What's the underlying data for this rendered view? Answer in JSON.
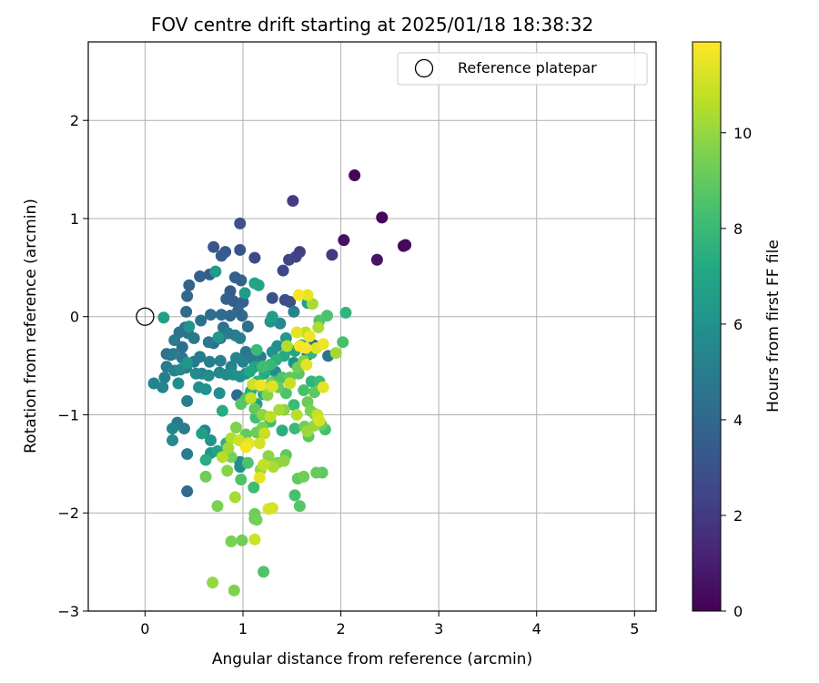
{
  "chart_data": {
    "type": "scatter",
    "title": "FOV centre drift starting at 2025/01/18 18:38:32",
    "xlabel": "Angular distance from reference (arcmin)",
    "ylabel": "Rotation from reference (arcmin)",
    "xlim": [
      -0.58,
      5.22
    ],
    "ylim": [
      -3,
      2.8
    ],
    "xticks": [
      0,
      1,
      2,
      3,
      4,
      5
    ],
    "yticks": [
      -3,
      -2,
      -1,
      0,
      1,
      2
    ],
    "xtick_labels": [
      "0",
      "1",
      "2",
      "3",
      "4",
      "5"
    ],
    "ytick_labels": [
      "−3",
      "−2",
      "−1",
      "0",
      "1",
      "2"
    ],
    "grid": true,
    "legend": {
      "placement": "upper-right",
      "label": "Reference platepar"
    },
    "reference_point": {
      "x": 0,
      "y": 0
    },
    "colorbar": {
      "label": "Hours from first FF file",
      "range": [
        0,
        11.9
      ],
      "ticks": [
        0,
        2,
        4,
        6,
        8,
        10
      ],
      "tick_labels": [
        "0",
        "2",
        "4",
        "6",
        "8",
        "10"
      ],
      "colormap": "viridis"
    },
    "points_xyh": [
      [
        2.14,
        1.44,
        0.1
      ],
      [
        2.42,
        1.01,
        0.2
      ],
      [
        2.66,
        0.73,
        0.3
      ],
      [
        2.64,
        0.72,
        0.3
      ],
      [
        2.03,
        0.78,
        0.5
      ],
      [
        2.37,
        0.58,
        0.6
      ],
      [
        1.51,
        1.18,
        2.1
      ],
      [
        1.58,
        0.66,
        2.2
      ],
      [
        1.54,
        0.61,
        2.3
      ],
      [
        1.47,
        0.58,
        2.4
      ],
      [
        1.91,
        0.63,
        2.0
      ],
      [
        1.41,
        0.47,
        2.5
      ],
      [
        1.12,
        0.6,
        2.6
      ],
      [
        1.43,
        0.17,
        2.7
      ],
      [
        1.48,
        0.15,
        2.8
      ],
      [
        1.3,
        0.19,
        2.9
      ],
      [
        0.97,
        0.95,
        3.0
      ],
      [
        0.97,
        0.68,
        3.1
      ],
      [
        0.7,
        0.71,
        3.2
      ],
      [
        0.82,
        0.66,
        3.3
      ],
      [
        0.78,
        0.62,
        3.4
      ],
      [
        0.66,
        0.43,
        3.5
      ],
      [
        0.92,
        0.4,
        3.6
      ],
      [
        0.98,
        0.37,
        3.7
      ],
      [
        0.56,
        0.41,
        3.6
      ],
      [
        0.45,
        0.32,
        3.8
      ],
      [
        0.43,
        0.21,
        3.9
      ],
      [
        0.87,
        0.26,
        3.4
      ],
      [
        0.9,
        0.16,
        3.5
      ],
      [
        0.83,
        0.18,
        3.7
      ],
      [
        1.0,
        0.15,
        3.8
      ],
      [
        0.95,
        0.06,
        3.9
      ],
      [
        0.99,
        0.01,
        4.0
      ],
      [
        0.87,
        0.01,
        4.1
      ],
      [
        0.78,
        0.02,
        4.2
      ],
      [
        0.67,
        0.02,
        4.3
      ],
      [
        0.42,
        0.05,
        4.1
      ],
      [
        0.57,
        -0.04,
        4.4
      ],
      [
        0.41,
        -0.11,
        4.2
      ],
      [
        0.35,
        -0.16,
        4.5
      ],
      [
        0.44,
        -0.17,
        4.6
      ],
      [
        0.5,
        -0.22,
        4.7
      ],
      [
        0.65,
        -0.26,
        4.8
      ],
      [
        0.7,
        -0.27,
        4.3
      ],
      [
        0.77,
        -0.22,
        4.4
      ],
      [
        0.8,
        -0.11,
        4.5
      ],
      [
        0.85,
        -0.17,
        4.9
      ],
      [
        0.92,
        -0.19,
        5.0
      ],
      [
        0.97,
        -0.22,
        5.1
      ],
      [
        1.05,
        -0.1,
        4.4
      ],
      [
        1.03,
        -0.36,
        4.6
      ],
      [
        1.1,
        -0.43,
        4.8
      ],
      [
        1.18,
        -0.41,
        5.0
      ],
      [
        1.0,
        -0.46,
        5.2
      ],
      [
        0.93,
        -0.42,
        5.3
      ],
      [
        0.88,
        -0.51,
        5.4
      ],
      [
        0.77,
        -0.45,
        5.2
      ],
      [
        0.66,
        -0.46,
        5.1
      ],
      [
        0.56,
        -0.41,
        4.9
      ],
      [
        0.5,
        -0.46,
        4.7
      ],
      [
        0.38,
        -0.42,
        4.6
      ],
      [
        0.26,
        -0.39,
        4.5
      ],
      [
        0.22,
        -0.38,
        4.4
      ],
      [
        0.29,
        -0.38,
        4.9
      ],
      [
        0.3,
        -0.24,
        4.8
      ],
      [
        0.38,
        -0.31,
        4.3
      ],
      [
        0.22,
        -0.51,
        5.0
      ],
      [
        0.3,
        -0.55,
        5.3
      ],
      [
        0.36,
        -0.54,
        5.5
      ],
      [
        0.42,
        -0.52,
        5.2
      ],
      [
        0.52,
        -0.58,
        5.6
      ],
      [
        0.58,
        -0.58,
        5.4
      ],
      [
        0.65,
        -0.6,
        5.7
      ],
      [
        0.76,
        -0.57,
        5.5
      ],
      [
        0.83,
        -0.59,
        5.6
      ],
      [
        0.9,
        -0.59,
        5.8
      ],
      [
        0.97,
        -0.61,
        5.9
      ],
      [
        1.03,
        -0.58,
        6.0
      ],
      [
        0.2,
        -0.62,
        5.1
      ],
      [
        0.18,
        -0.72,
        5.3
      ],
      [
        0.09,
        -0.68,
        5.4
      ],
      [
        0.34,
        -0.68,
        5.8
      ],
      [
        0.55,
        -0.72,
        5.9
      ],
      [
        0.62,
        -0.74,
        6.0
      ],
      [
        0.76,
        -0.78,
        5.7
      ],
      [
        0.94,
        -0.8,
        4.2
      ],
      [
        0.43,
        -0.86,
        5.0
      ],
      [
        0.33,
        -1.08,
        4.8
      ],
      [
        0.4,
        -1.14,
        5.1
      ],
      [
        0.28,
        -1.14,
        5.4
      ],
      [
        0.28,
        -1.26,
        5.6
      ],
      [
        0.61,
        -1.16,
        5.3
      ],
      [
        0.67,
        -1.26,
        6.2
      ],
      [
        0.67,
        -1.39,
        6.3
      ],
      [
        0.43,
        -1.4,
        4.9
      ],
      [
        0.97,
        -1.48,
        5.7
      ],
      [
        0.97,
        -1.53,
        5.8
      ],
      [
        0.43,
        -1.78,
        4.2
      ],
      [
        1.28,
        -0.05,
        6.1
      ],
      [
        1.3,
        0.0,
        6.6
      ],
      [
        1.12,
        0.34,
        6.9
      ],
      [
        1.16,
        0.32,
        7.0
      ],
      [
        1.02,
        0.24,
        6.4
      ],
      [
        0.72,
        0.46,
        6.5
      ],
      [
        0.19,
        -0.01,
        6.7
      ],
      [
        1.66,
        0.14,
        6.8
      ],
      [
        2.05,
        0.04,
        7.7
      ],
      [
        2.02,
        -0.26,
        8.4
      ],
      [
        1.78,
        -0.04,
        8.7
      ],
      [
        1.86,
        0.01,
        8.5
      ],
      [
        1.44,
        -0.22,
        6.3
      ],
      [
        1.46,
        -0.32,
        6.5
      ],
      [
        1.53,
        -0.35,
        7.0
      ],
      [
        1.6,
        -0.29,
        7.4
      ],
      [
        1.7,
        -0.37,
        7.8
      ],
      [
        1.42,
        -0.4,
        7.2
      ],
      [
        1.34,
        -0.44,
        7.5
      ],
      [
        1.28,
        -0.49,
        7.9
      ],
      [
        1.2,
        -0.51,
        8.2
      ],
      [
        1.14,
        -0.34,
        8.0
      ],
      [
        1.12,
        -0.51,
        6.8
      ],
      [
        1.07,
        -0.56,
        7.1
      ],
      [
        1.22,
        -0.58,
        7.3
      ],
      [
        1.15,
        -0.66,
        7.6
      ],
      [
        1.19,
        -0.72,
        7.8
      ],
      [
        1.08,
        -0.76,
        7.4
      ],
      [
        1.05,
        -0.82,
        7.0
      ],
      [
        1.14,
        -0.89,
        6.7
      ],
      [
        1.21,
        -0.79,
        7.2
      ],
      [
        1.32,
        -0.66,
        8.3
      ],
      [
        1.4,
        -0.62,
        8.6
      ],
      [
        1.48,
        -0.62,
        9.0
      ],
      [
        1.56,
        -0.52,
        9.3
      ],
      [
        1.62,
        -0.45,
        9.6
      ],
      [
        1.57,
        -0.58,
        8.8
      ],
      [
        1.7,
        -0.66,
        7.7
      ],
      [
        1.78,
        -0.66,
        8.1
      ],
      [
        1.62,
        -0.75,
        8.4
      ],
      [
        1.73,
        -0.77,
        8.9
      ],
      [
        1.66,
        -0.87,
        9.2
      ],
      [
        1.69,
        -0.96,
        9.5
      ],
      [
        1.52,
        -0.9,
        8.0
      ],
      [
        1.42,
        -0.95,
        9.8
      ],
      [
        1.44,
        -0.78,
        8.5
      ],
      [
        1.36,
        -0.72,
        9.1
      ],
      [
        1.29,
        -0.68,
        9.4
      ],
      [
        1.25,
        -0.8,
        9.7
      ],
      [
        1.12,
        -0.94,
        9.0
      ],
      [
        1.03,
        -0.84,
        8.6
      ],
      [
        0.98,
        -0.89,
        8.8
      ],
      [
        1.13,
        -1.03,
        8.3
      ],
      [
        1.2,
        -1.0,
        9.9
      ],
      [
        1.28,
        -1.07,
        8.2
      ],
      [
        1.2,
        -1.13,
        9.5
      ],
      [
        1.14,
        -1.18,
        9.2
      ],
      [
        1.03,
        -1.2,
        9.0
      ],
      [
        0.93,
        -1.13,
        9.6
      ],
      [
        1.4,
        -1.16,
        7.5
      ],
      [
        1.53,
        -1.14,
        8.0
      ],
      [
        1.63,
        -1.12,
        9.3
      ],
      [
        1.73,
        -1.11,
        10.0
      ],
      [
        1.8,
        -1.1,
        9.2
      ],
      [
        1.84,
        -1.15,
        8.4
      ],
      [
        1.66,
        -1.17,
        10.1
      ],
      [
        1.67,
        -1.22,
        8.8
      ],
      [
        1.55,
        -1.0,
        10.6
      ],
      [
        1.76,
        -1.0,
        10.8
      ],
      [
        1.78,
        -1.06,
        11.2
      ],
      [
        1.73,
        -0.99,
        9.5
      ],
      [
        1.82,
        -0.72,
        11.5
      ],
      [
        1.65,
        -0.49,
        11.4
      ],
      [
        1.75,
        -0.32,
        11.3
      ],
      [
        1.82,
        -0.28,
        11.6
      ],
      [
        1.95,
        -0.37,
        10.2
      ],
      [
        1.58,
        -0.3,
        11.7
      ],
      [
        1.64,
        -0.32,
        11.8
      ],
      [
        1.68,
        -0.2,
        11.6
      ],
      [
        1.55,
        -0.16,
        11.4
      ],
      [
        1.64,
        -0.16,
        10.7
      ],
      [
        1.77,
        -0.11,
        10.4
      ],
      [
        1.66,
        0.22,
        11.5
      ],
      [
        1.71,
        0.13,
        10.3
      ],
      [
        1.57,
        0.22,
        11.8
      ],
      [
        1.45,
        -0.3,
        10.5
      ],
      [
        1.48,
        -0.68,
        10.9
      ],
      [
        1.3,
        -0.71,
        11.3
      ],
      [
        1.18,
        -0.7,
        11.6
      ],
      [
        1.1,
        -0.69,
        11.0
      ],
      [
        1.08,
        -0.83,
        10.8
      ],
      [
        1.26,
        -0.72,
        10.1
      ],
      [
        1.37,
        -0.95,
        10.3
      ],
      [
        1.28,
        -1.02,
        10.7
      ],
      [
        1.22,
        -1.19,
        10.9
      ],
      [
        0.96,
        -1.26,
        11.0
      ],
      [
        0.88,
        -1.24,
        10.5
      ],
      [
        0.85,
        -1.34,
        10.2
      ],
      [
        1.03,
        -1.33,
        11.7
      ],
      [
        1.06,
        -1.29,
        11.4
      ],
      [
        1.17,
        -1.29,
        11.1
      ],
      [
        1.26,
        -1.42,
        9.8
      ],
      [
        1.35,
        -1.49,
        9.6
      ],
      [
        1.42,
        -1.47,
        9.9
      ],
      [
        1.44,
        -1.41,
        8.9
      ],
      [
        1.31,
        -1.53,
        10.4
      ],
      [
        1.21,
        -1.51,
        10.8
      ],
      [
        1.18,
        -1.56,
        10.0
      ],
      [
        1.17,
        -1.64,
        11.5
      ],
      [
        1.05,
        -1.49,
        8.5
      ],
      [
        0.88,
        -1.43,
        9.4
      ],
      [
        0.79,
        -1.43,
        10.6
      ],
      [
        0.84,
        -1.57,
        9.7
      ],
      [
        0.98,
        -1.66,
        8.6
      ],
      [
        0.92,
        -1.84,
        10.3
      ],
      [
        0.62,
        -1.63,
        9.3
      ],
      [
        0.74,
        -1.93,
        9.5
      ],
      [
        1.11,
        -1.74,
        8.2
      ],
      [
        1.26,
        -1.96,
        11.2
      ],
      [
        1.3,
        -1.95,
        11.1
      ],
      [
        1.56,
        -1.65,
        9.0
      ],
      [
        1.62,
        -1.63,
        9.3
      ],
      [
        1.75,
        -1.59,
        9.1
      ],
      [
        1.81,
        -1.59,
        8.9
      ],
      [
        1.53,
        -1.82,
        8.4
      ],
      [
        1.58,
        -1.93,
        8.7
      ],
      [
        1.12,
        -2.01,
        9.2
      ],
      [
        1.12,
        -2.06,
        9.0
      ],
      [
        1.14,
        -2.07,
        9.4
      ],
      [
        1.12,
        -2.27,
        11.0
      ],
      [
        0.88,
        -2.29,
        9.5
      ],
      [
        0.99,
        -2.28,
        9.3
      ],
      [
        1.21,
        -2.6,
        8.6
      ],
      [
        0.69,
        -2.71,
        10.0
      ],
      [
        0.91,
        -2.79,
        9.6
      ],
      [
        0.74,
        -1.37,
        6.9
      ],
      [
        0.83,
        -1.29,
        7.6
      ],
      [
        0.62,
        -1.46,
        7.4
      ],
      [
        0.58,
        -1.19,
        6.7
      ],
      [
        0.79,
        -0.96,
        7.3
      ],
      [
        0.43,
        -0.47,
        6.2
      ],
      [
        0.45,
        -0.1,
        6.1
      ],
      [
        0.75,
        -0.21,
        6.3
      ],
      [
        1.3,
        -0.36,
        6.0
      ],
      [
        1.38,
        -0.07,
        5.6
      ],
      [
        1.52,
        0.05,
        5.2
      ],
      [
        1.35,
        -0.3,
        5.9
      ],
      [
        1.66,
        -0.39,
        3.4
      ],
      [
        1.72,
        -0.29,
        4.1
      ],
      [
        1.87,
        -0.4,
        4.6
      ],
      [
        1.33,
        -0.56,
        5.7
      ],
      [
        1.52,
        -0.47,
        6.0
      ]
    ]
  }
}
